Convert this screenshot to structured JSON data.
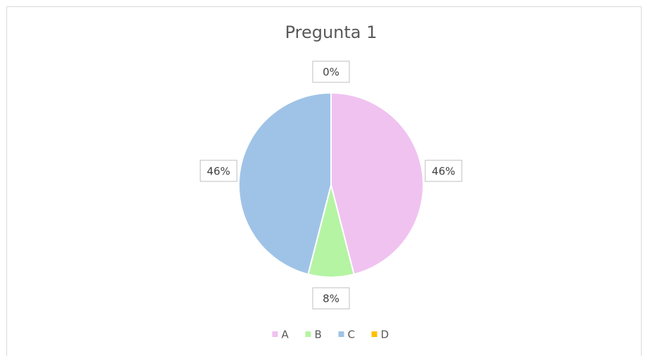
{
  "chart_data": {
    "type": "pie",
    "title": "Pregunta 1",
    "categories": [
      "A",
      "B",
      "C",
      "D"
    ],
    "values": [
      46,
      8,
      46,
      0
    ],
    "value_labels": [
      "46%",
      "8%",
      "46%",
      "0%"
    ],
    "colors": [
      "#f0c2f0",
      "#b5f4a3",
      "#9fc3e7",
      "#ffc000"
    ],
    "legend": "bottom"
  }
}
